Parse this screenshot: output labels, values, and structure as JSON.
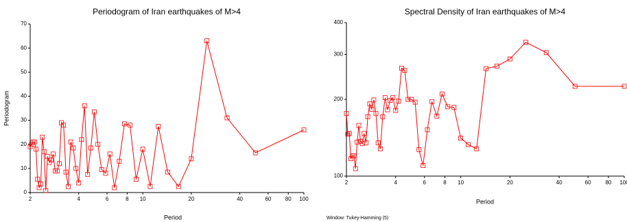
{
  "chart_data": [
    {
      "type": "line",
      "title": "Periodogram of Iran earthquakes of M>4",
      "xlabel": "Period",
      "ylabel": "Periodogram",
      "x": [
        2,
        2.04,
        2.083,
        2.128,
        2.174,
        2.222,
        2.273,
        2.326,
        2.381,
        2.439,
        2.5,
        2.564,
        2.632,
        2.703,
        2.778,
        2.857,
        2.941,
        3.03,
        3.125,
        3.226,
        3.333,
        3.448,
        3.571,
        3.704,
        3.846,
        4,
        4.167,
        4.348,
        4.545,
        4.762,
        5,
        5.263,
        5.556,
        5.882,
        6.25,
        6.667,
        7.143,
        7.692,
        8.333,
        9.091,
        10,
        11.111,
        12.5,
        14.286,
        16.667,
        20,
        25,
        33.333,
        50,
        100
      ],
      "series": [
        {
          "color": "#ff0000",
          "values": [
            19,
            20,
            21,
            21,
            18,
            5.5,
            2,
            3.5,
            23,
            17,
            0.8,
            15,
            12.5,
            13.5,
            16,
            9,
            9,
            12,
            29,
            28,
            8.5,
            2.5,
            21,
            18.5,
            10,
            4,
            22,
            36,
            7.5,
            18.5,
            33.5,
            20,
            9.5,
            8,
            16,
            2,
            13,
            28.5,
            28,
            5.5,
            18,
            2.5,
            27.5,
            8.5,
            2.5,
            14,
            63,
            31,
            16.5,
            26
          ]
        }
      ],
      "xlim": [
        2,
        100
      ],
      "xticks": [
        2,
        4,
        6,
        8,
        10,
        20,
        40,
        60,
        80,
        100
      ],
      "log_x": true,
      "ylim": [
        0,
        70
      ],
      "yticks": [
        0,
        10,
        20,
        30,
        40,
        50,
        60,
        70
      ],
      "log_y": false
    },
    {
      "type": "line",
      "title": "Spectral Density of Iran earthquakes of M>4",
      "xlabel": "Period",
      "note": "Window: Tukey-Hamming (5)",
      "x": [
        2,
        2.04,
        2.083,
        2.128,
        2.174,
        2.222,
        2.273,
        2.326,
        2.381,
        2.439,
        2.5,
        2.564,
        2.632,
        2.703,
        2.778,
        2.857,
        2.941,
        3.03,
        3.125,
        3.226,
        3.333,
        3.448,
        3.571,
        3.704,
        3.846,
        4,
        4.167,
        4.348,
        4.545,
        4.762,
        5,
        5.263,
        5.556,
        5.882,
        6.25,
        6.667,
        7.143,
        7.692,
        8.333,
        9.091,
        10,
        11.111,
        12.5,
        14.286,
        16.667,
        20,
        25,
        33.333,
        50,
        100
      ],
      "series": [
        {
          "color": "#ff0000",
          "values": [
            176,
            146,
            147,
            117,
            120,
            120,
            107,
            136,
            158,
            137,
            134,
            147,
            135,
            171,
            192,
            183,
            199,
            176,
            135,
            128,
            171,
            203,
            182,
            198,
            203,
            181,
            197,
            265,
            260,
            200,
            200,
            195,
            127,
            110,
            152,
            196,
            172,
            210,
            187,
            186,
            141,
            133,
            128,
            264,
            270,
            288,
            335,
            305,
            225,
            225
          ]
        }
      ],
      "xlim": [
        2,
        100
      ],
      "xticks": [
        2,
        4,
        6,
        8,
        10,
        20,
        40,
        60,
        80,
        100
      ],
      "log_x": true,
      "ylim": [
        100,
        400
      ],
      "yticks": [
        100,
        200,
        300,
        400
      ],
      "log_y": true
    }
  ]
}
